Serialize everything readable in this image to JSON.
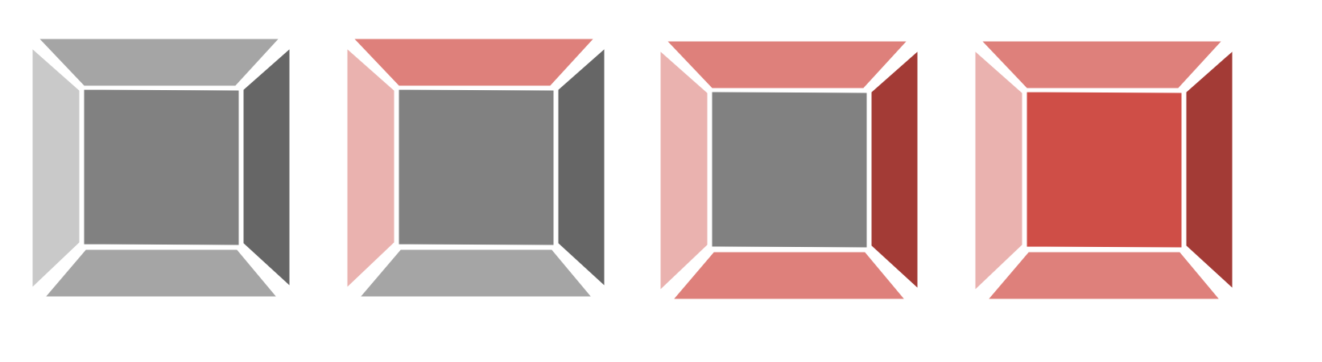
{
  "colors": {
    "background": "#ffffff",
    "separator": "#ffffff",
    "gray_light": "#c9c9c9",
    "gray_mid": "#a5a5a5",
    "gray_center": "#818181",
    "gray_dark": "#666666",
    "red_light": "#eab2af",
    "red_mid": "#de807b",
    "red_center": "#cf4e47",
    "red_dark": "#a33b36"
  },
  "boxes": [
    {
      "id": "box-1",
      "faces": {
        "top": "gray_mid",
        "left": "gray_light",
        "center": "gray_center",
        "right": "gray_dark",
        "bottom": "gray_mid"
      }
    },
    {
      "id": "box-2",
      "faces": {
        "top": "red_mid",
        "left": "red_light",
        "center": "gray_center",
        "right": "gray_dark",
        "bottom": "gray_mid"
      }
    },
    {
      "id": "box-3",
      "faces": {
        "top": "red_mid",
        "left": "red_light",
        "center": "gray_center",
        "right": "red_dark",
        "bottom": "red_mid"
      }
    },
    {
      "id": "box-4",
      "faces": {
        "top": "red_mid",
        "left": "red_light",
        "center": "red_center",
        "right": "red_dark",
        "bottom": "red_mid"
      }
    }
  ]
}
